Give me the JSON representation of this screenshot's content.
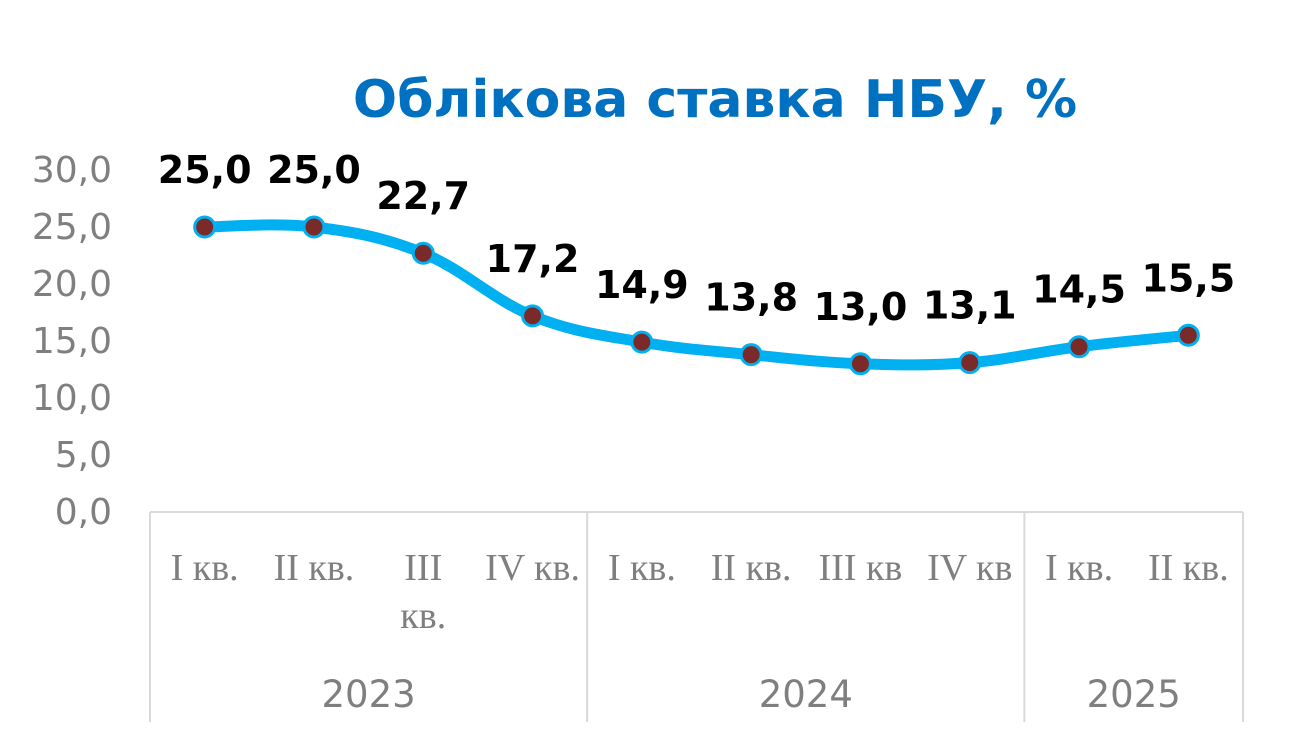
{
  "chart_data": {
    "type": "line",
    "title": "Облікова ставка НБУ, %",
    "xlabel": "",
    "ylabel": "",
    "ylim": [
      0,
      30
    ],
    "yticks": [
      "0,0",
      "5,0",
      "10,0",
      "15,0",
      "20,0",
      "25,0",
      "30,0"
    ],
    "grid": false,
    "legend": "none",
    "categories": [
      {
        "lines": [
          "I кв."
        ],
        "year": "2023"
      },
      {
        "lines": [
          "II кв."
        ],
        "year": "2023"
      },
      {
        "lines": [
          "III",
          "кв."
        ],
        "year": "2023"
      },
      {
        "lines": [
          "IV кв."
        ],
        "year": "2023"
      },
      {
        "lines": [
          "I кв."
        ],
        "year": "2024"
      },
      {
        "lines": [
          "II кв."
        ],
        "year": "2024"
      },
      {
        "lines": [
          "III кв"
        ],
        "year": "2024"
      },
      {
        "lines": [
          "IV кв"
        ],
        "year": "2024"
      },
      {
        "lines": [
          "I кв."
        ],
        "year": "2025"
      },
      {
        "lines": [
          "II кв."
        ],
        "year": "2025"
      }
    ],
    "years": [
      "2023",
      "2024",
      "2025"
    ],
    "values": [
      25.0,
      25.0,
      22.7,
      17.2,
      14.9,
      13.8,
      13.0,
      13.1,
      14.5,
      15.5
    ],
    "data_labels": [
      "25,0",
      "25,0",
      "22,7",
      "17,2",
      "14,9",
      "13,8",
      "13,0",
      "13,1",
      "14,5",
      "15,5"
    ],
    "colors": {
      "title": "#0070c0",
      "line": "#00b0f0",
      "marker_fill": "#7b2a2a",
      "marker_edge": "#00b0f0",
      "axis_text": "#7f7f7f",
      "data_label": "#000000",
      "axis_line": "#d9d9d9"
    }
  }
}
